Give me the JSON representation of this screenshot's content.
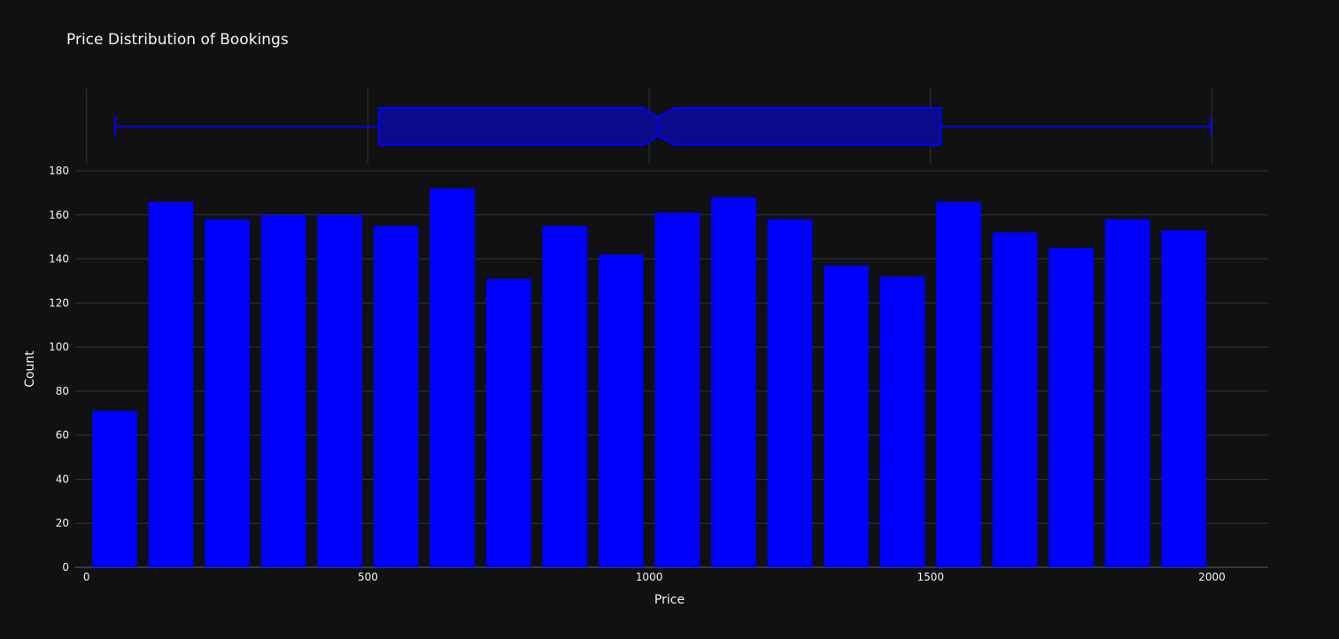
{
  "colors": {
    "background": "#111111",
    "grid": "#283442",
    "text": "#f2f5fa",
    "bar": "#0000ff",
    "box_fill": "#0a0a8a",
    "box_line": "#0000ff"
  },
  "chart_data": {
    "type": "bar",
    "title": "Price Distribution of Bookings",
    "xlabel": "Price",
    "ylabel": "Count",
    "xlim": [
      -20,
      2100
    ],
    "ylim": [
      0,
      180
    ],
    "x_ticks": [
      0,
      500,
      1000,
      1500,
      2000
    ],
    "y_ticks": [
      0,
      20,
      40,
      60,
      80,
      100,
      120,
      140,
      160,
      180
    ],
    "bins": [
      {
        "start": 0,
        "end": 100,
        "count": 71
      },
      {
        "start": 100,
        "end": 200,
        "count": 166
      },
      {
        "start": 200,
        "end": 300,
        "count": 158
      },
      {
        "start": 300,
        "end": 400,
        "count": 160
      },
      {
        "start": 400,
        "end": 500,
        "count": 160
      },
      {
        "start": 500,
        "end": 600,
        "count": 155
      },
      {
        "start": 600,
        "end": 700,
        "count": 172
      },
      {
        "start": 700,
        "end": 800,
        "count": 131
      },
      {
        "start": 800,
        "end": 900,
        "count": 155
      },
      {
        "start": 900,
        "end": 1000,
        "count": 142
      },
      {
        "start": 1000,
        "end": 1100,
        "count": 161
      },
      {
        "start": 1100,
        "end": 1200,
        "count": 168
      },
      {
        "start": 1200,
        "end": 1300,
        "count": 158
      },
      {
        "start": 1300,
        "end": 1400,
        "count": 137
      },
      {
        "start": 1400,
        "end": 1500,
        "count": 132
      },
      {
        "start": 1500,
        "end": 1600,
        "count": 166
      },
      {
        "start": 1600,
        "end": 1700,
        "count": 152
      },
      {
        "start": 1700,
        "end": 1800,
        "count": 145
      },
      {
        "start": 1800,
        "end": 1900,
        "count": 158
      },
      {
        "start": 1900,
        "end": 2000,
        "count": 153
      }
    ],
    "marginal_box": {
      "type": "box",
      "notched": true,
      "min": 51,
      "q1": 520,
      "median": 1016,
      "q3": 1518,
      "max": 1998,
      "notch_low": 990,
      "notch_high": 1045
    }
  }
}
